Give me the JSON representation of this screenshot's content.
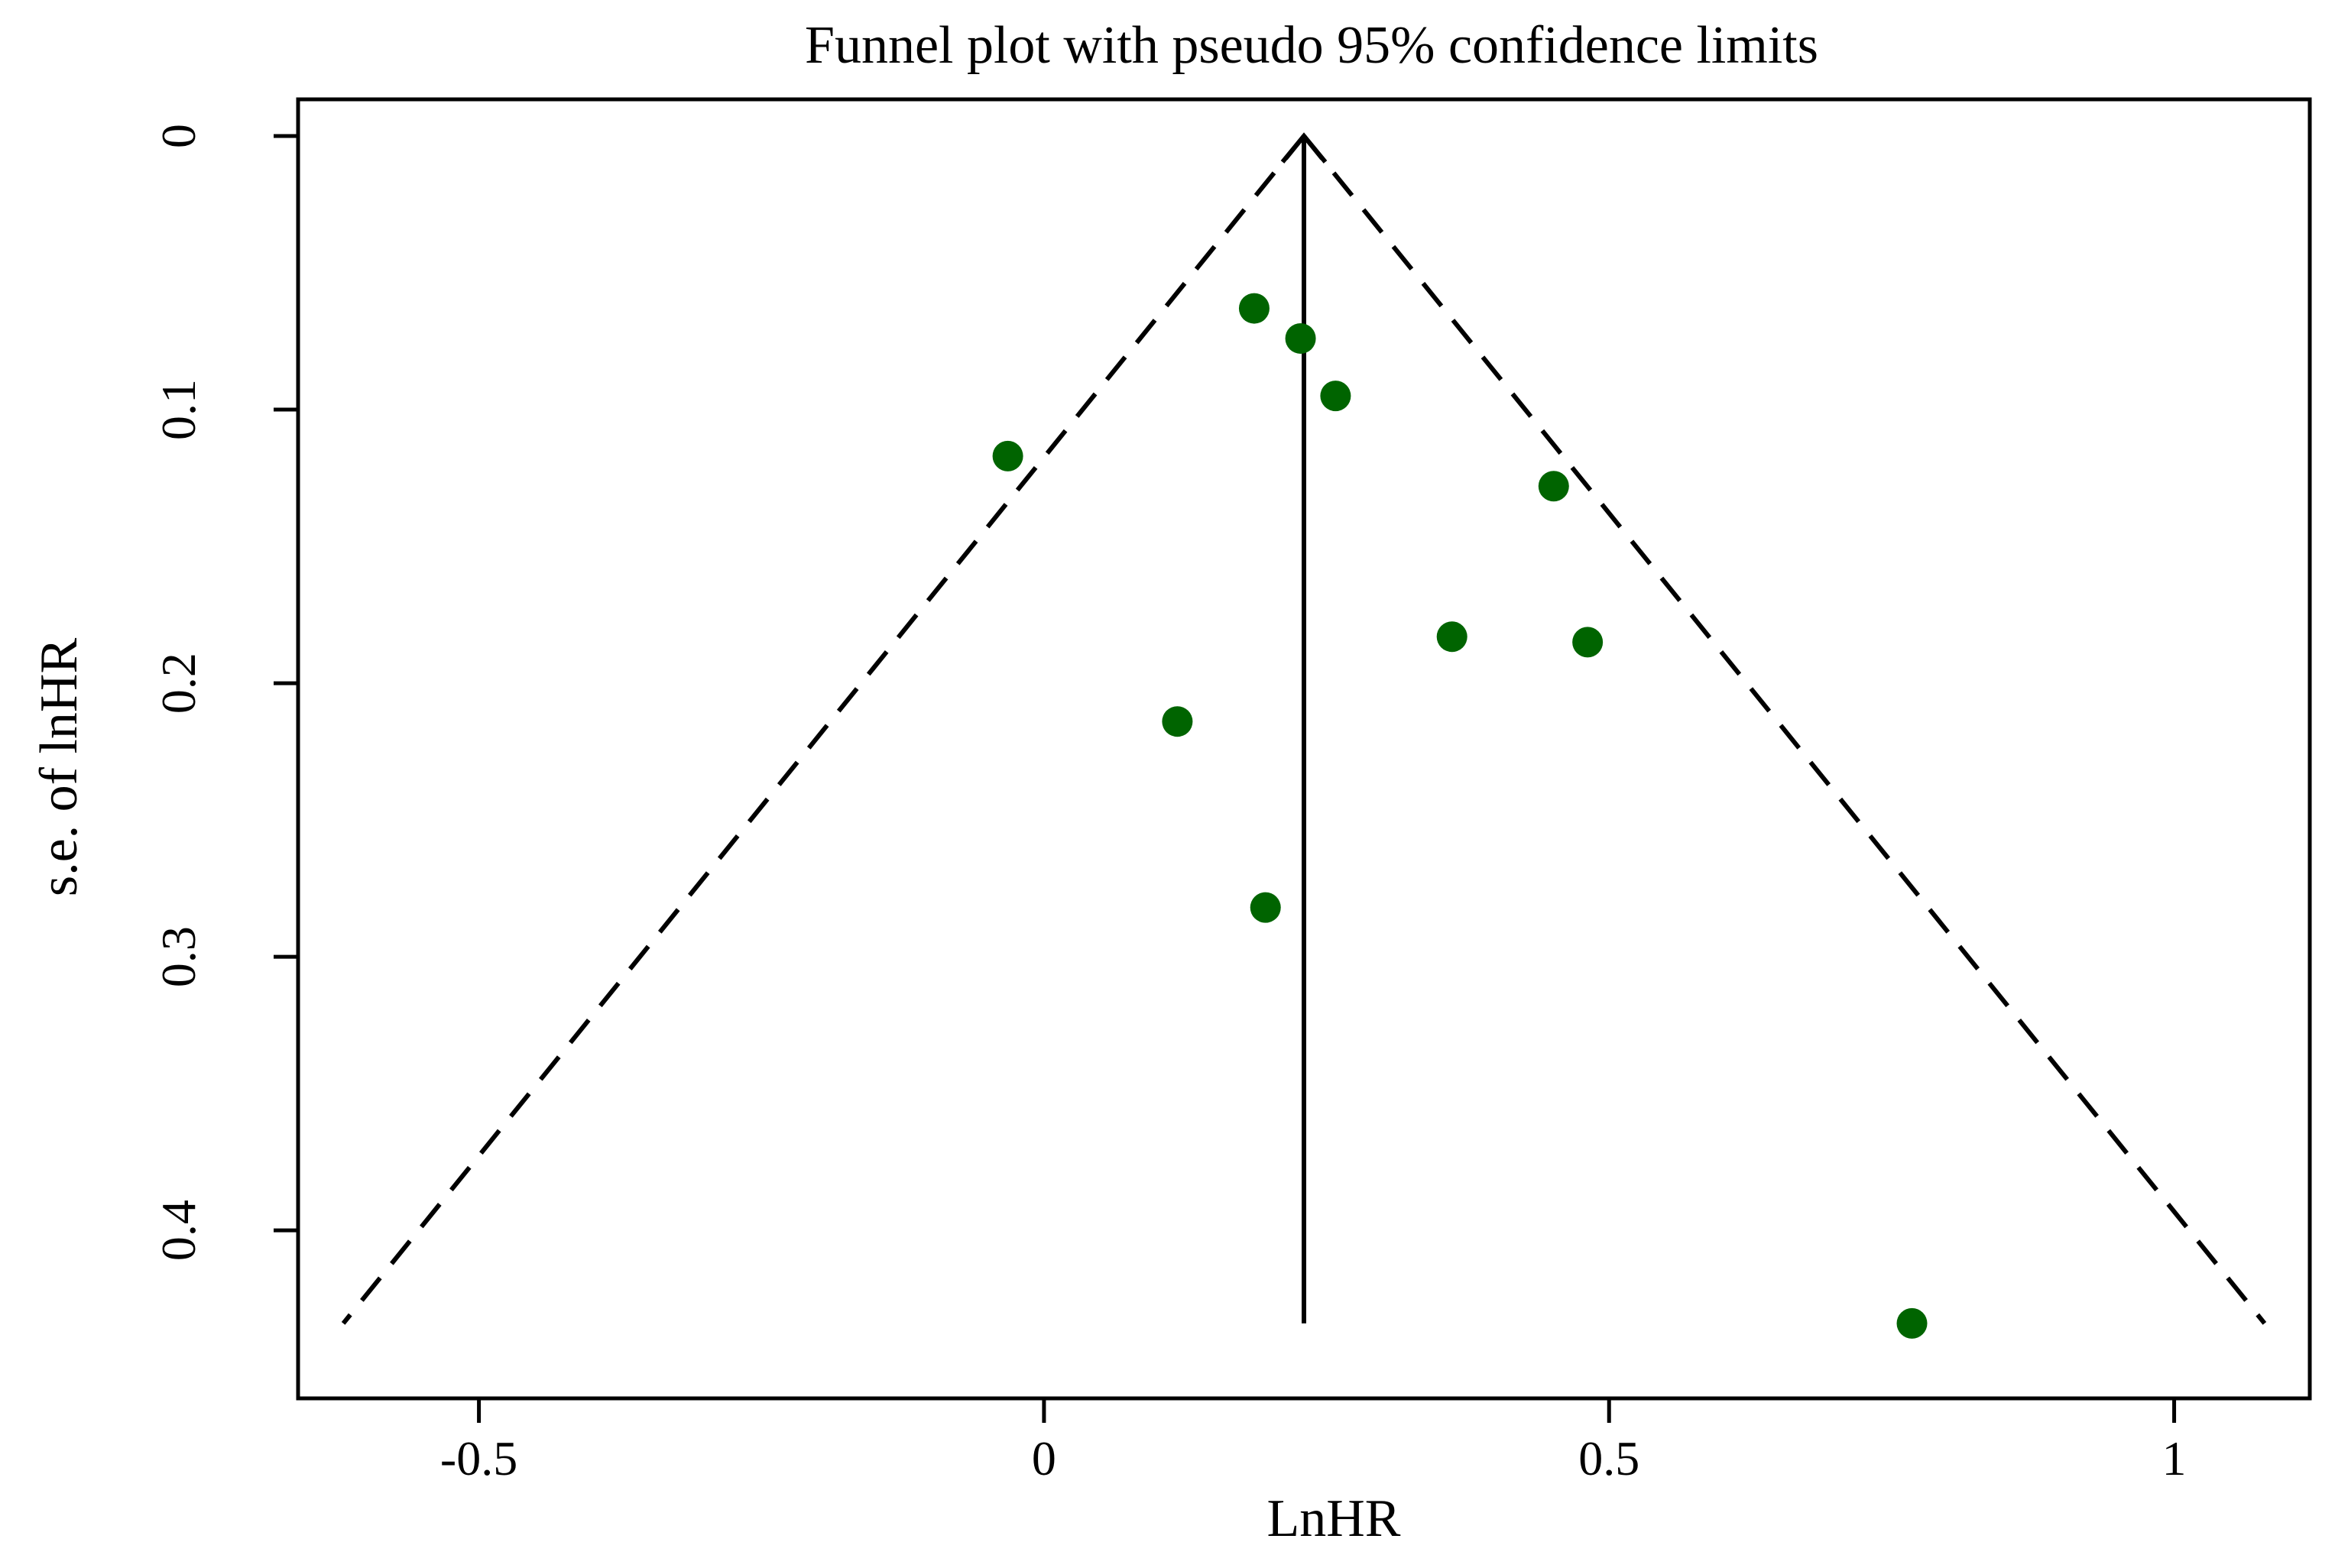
{
  "chart_data": {
    "type": "scatter",
    "title": "Funnel plot with pseudo 95% confidence limits",
    "xlabel": "LnHR",
    "ylabel": "s.e. of lnHR",
    "xlim": [
      -0.66,
      1.12
    ],
    "ylim": [
      0,
      0.448
    ],
    "y_reversed": true,
    "grid": false,
    "legend": "none",
    "x_ticks": [
      {
        "value": -0.5,
        "label": "-0.5"
      },
      {
        "value": 0,
        "label": "0"
      },
      {
        "value": 0.5,
        "label": "0.5"
      },
      {
        "value": 1,
        "label": "1"
      }
    ],
    "y_ticks": [
      {
        "value": 0,
        "label": "0"
      },
      {
        "value": 0.1,
        "label": "0.1"
      },
      {
        "value": 0.2,
        "label": "0.2"
      },
      {
        "value": 0.3,
        "label": "0.3"
      },
      {
        "value": 0.4,
        "label": "0.4"
      }
    ],
    "pooled_estimate": 0.23,
    "funnel_limits": {
      "apex": [
        0.23,
        0
      ],
      "lower_left": [
        -0.62,
        0.434
      ],
      "lower_right": [
        1.08,
        0.434
      ],
      "style": "dashed"
    },
    "point_color": "#006400",
    "points": [
      {
        "x": 0.186,
        "y": 0.063
      },
      {
        "x": 0.227,
        "y": 0.074
      },
      {
        "x": 0.258,
        "y": 0.095
      },
      {
        "x": -0.032,
        "y": 0.117
      },
      {
        "x": 0.451,
        "y": 0.128
      },
      {
        "x": 0.361,
        "y": 0.183
      },
      {
        "x": 0.481,
        "y": 0.185
      },
      {
        "x": 0.118,
        "y": 0.214
      },
      {
        "x": 0.196,
        "y": 0.282
      },
      {
        "x": 0.768,
        "y": 0.434
      }
    ]
  }
}
